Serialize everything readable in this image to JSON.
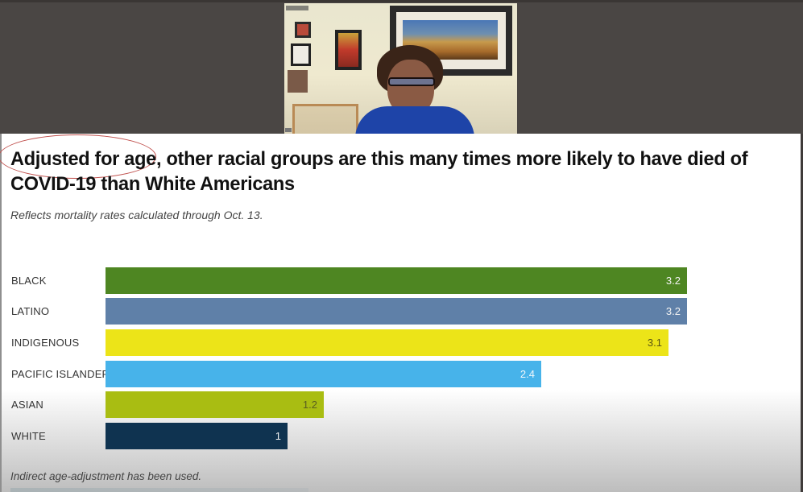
{
  "video_feed": {
    "description": "Speaker webcam thumbnail"
  },
  "slide": {
    "title": "Adjusted for age, other racial groups are this many times more likely to have died of COVID-19 than White Americans",
    "highlighted_phrase": "Adjusted for age",
    "subtitle": "Reflects mortality rates calculated through Oct. 13.",
    "footnote": "Indirect age-adjustment has been used."
  },
  "chart_data": {
    "type": "bar",
    "orientation": "horizontal",
    "title": "Adjusted for age, other racial groups are this many times more likely to have died of COVID-19 than White Americans",
    "subtitle": "Reflects mortality rates calculated through Oct. 13.",
    "xlabel": "",
    "ylabel": "",
    "categories": [
      "BLACK",
      "LATINO",
      "INDIGENOUS",
      "PACIFIC ISLANDER",
      "ASIAN",
      "WHITE"
    ],
    "values": [
      3.2,
      3.2,
      3.1,
      2.4,
      1.2,
      1
    ],
    "value_labels": [
      "3.2",
      "3.2",
      "3.1",
      "2.4",
      "1.2",
      "1"
    ],
    "colors": [
      "#4e8622",
      "#5f80a8",
      "#ece418",
      "#47b3ea",
      "#a9bd12",
      "#0f3350"
    ],
    "label_colors": [
      "#f2f2f2",
      "#f2f2f2",
      "#5a5514",
      "#eef6fb",
      "#5a5e20",
      "#f2f2f2"
    ],
    "xlim": [
      0,
      3.2
    ],
    "grid": false,
    "legend": "none",
    "annotations": [
      "Indirect age-adjustment has been used."
    ]
  },
  "rows": [
    {
      "label": "BLACK",
      "value": "3.2"
    },
    {
      "label": "LATINO",
      "value": "3.2"
    },
    {
      "label": "INDIGENOUS",
      "value": "3.1"
    },
    {
      "label": "PACIFIC ISLANDER",
      "value": "2.4"
    },
    {
      "label": "ASIAN",
      "value": "1.2"
    },
    {
      "label": "WHITE",
      "value": "1"
    }
  ]
}
